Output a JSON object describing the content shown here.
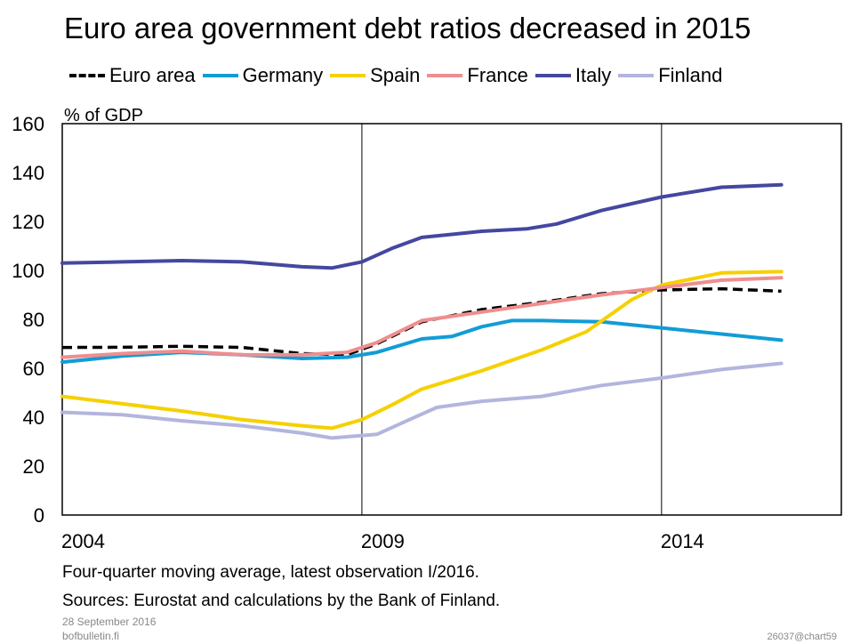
{
  "chart_data": {
    "type": "line",
    "title": "Euro area government debt ratios decreased in 2015",
    "ylabel": "% of GDP",
    "xlabel": "",
    "ylim": [
      0,
      160
    ],
    "yticks": [
      0,
      20,
      40,
      60,
      80,
      100,
      120,
      140,
      160
    ],
    "xlim": [
      2004,
      2017
    ],
    "xticks": [
      2004,
      2009,
      2014
    ],
    "xtick_labels": [
      "2004",
      "2009",
      "2014"
    ],
    "grid": "vertical lines at 2009 and 2014",
    "legend_position": "top",
    "series": [
      {
        "name": "Euro area",
        "color": "#000000",
        "style": "dashed",
        "points": [
          [
            2004.0,
            68.5
          ],
          [
            2005.0,
            68.6
          ],
          [
            2006.0,
            69.0
          ],
          [
            2007.0,
            68.5
          ],
          [
            2008.0,
            66.0
          ],
          [
            2008.75,
            65.5
          ],
          [
            2009.25,
            70.0
          ],
          [
            2010.0,
            79.0
          ],
          [
            2011.0,
            84.0
          ],
          [
            2012.0,
            87.0
          ],
          [
            2013.0,
            90.5
          ],
          [
            2014.0,
            92.0
          ],
          [
            2015.0,
            92.5
          ],
          [
            2016.0,
            91.5
          ]
        ]
      },
      {
        "name": "Germany",
        "color": "#129cd6",
        "style": "solid",
        "points": [
          [
            2004.0,
            62.5
          ],
          [
            2005.0,
            65.0
          ],
          [
            2006.0,
            66.5
          ],
          [
            2007.0,
            65.5
          ],
          [
            2008.0,
            64.0
          ],
          [
            2008.75,
            64.5
          ],
          [
            2009.25,
            66.5
          ],
          [
            2010.0,
            72.0
          ],
          [
            2010.5,
            73.0
          ],
          [
            2011.0,
            77.0
          ],
          [
            2011.5,
            79.5
          ],
          [
            2012.0,
            79.5
          ],
          [
            2013.0,
            79.0
          ],
          [
            2014.0,
            76.5
          ],
          [
            2015.0,
            74.0
          ],
          [
            2016.0,
            71.5
          ]
        ]
      },
      {
        "name": "Spain",
        "color": "#f6d000",
        "style": "solid",
        "points": [
          [
            2004.0,
            48.5
          ],
          [
            2005.0,
            45.5
          ],
          [
            2006.0,
            42.5
          ],
          [
            2007.0,
            39.0
          ],
          [
            2008.0,
            36.5
          ],
          [
            2008.5,
            35.5
          ],
          [
            2009.0,
            39.0
          ],
          [
            2009.5,
            45.0
          ],
          [
            2010.0,
            51.5
          ],
          [
            2011.0,
            59.0
          ],
          [
            2012.0,
            67.5
          ],
          [
            2012.75,
            75.0
          ],
          [
            2013.5,
            88.0
          ],
          [
            2014.0,
            94.0
          ],
          [
            2015.0,
            99.0
          ],
          [
            2016.0,
            99.5
          ]
        ]
      },
      {
        "name": "France",
        "color": "#ef8e8e",
        "style": "solid",
        "points": [
          [
            2004.0,
            64.5
          ],
          [
            2005.0,
            66.0
          ],
          [
            2006.0,
            67.0
          ],
          [
            2007.0,
            65.5
          ],
          [
            2008.0,
            65.5
          ],
          [
            2008.75,
            66.5
          ],
          [
            2009.25,
            70.5
          ],
          [
            2010.0,
            79.5
          ],
          [
            2011.0,
            83.0
          ],
          [
            2012.0,
            86.5
          ],
          [
            2013.0,
            90.0
          ],
          [
            2014.0,
            93.0
          ],
          [
            2015.0,
            96.0
          ],
          [
            2016.0,
            97.0
          ]
        ]
      },
      {
        "name": "Italy",
        "color": "#45479f",
        "style": "solid",
        "points": [
          [
            2004.0,
            103.0
          ],
          [
            2005.0,
            103.5
          ],
          [
            2006.0,
            104.0
          ],
          [
            2007.0,
            103.5
          ],
          [
            2008.0,
            101.5
          ],
          [
            2008.5,
            101.0
          ],
          [
            2009.0,
            103.5
          ],
          [
            2009.5,
            109.0
          ],
          [
            2010.0,
            113.5
          ],
          [
            2011.0,
            116.0
          ],
          [
            2011.75,
            117.0
          ],
          [
            2012.25,
            119.0
          ],
          [
            2013.0,
            124.5
          ],
          [
            2014.0,
            130.0
          ],
          [
            2015.0,
            134.0
          ],
          [
            2016.0,
            135.0
          ]
        ]
      },
      {
        "name": "Finland",
        "color": "#b3b5dd",
        "style": "solid",
        "points": [
          [
            2004.0,
            42.0
          ],
          [
            2005.0,
            41.0
          ],
          [
            2006.0,
            38.5
          ],
          [
            2007.0,
            36.5
          ],
          [
            2008.0,
            33.5
          ],
          [
            2008.5,
            31.5
          ],
          [
            2009.25,
            33.0
          ],
          [
            2009.75,
            38.5
          ],
          [
            2010.25,
            44.0
          ],
          [
            2011.0,
            46.5
          ],
          [
            2012.0,
            48.5
          ],
          [
            2013.0,
            53.0
          ],
          [
            2014.0,
            56.0
          ],
          [
            2015.0,
            59.5
          ],
          [
            2016.0,
            62.0
          ]
        ]
      }
    ]
  },
  "footnotes": {
    "line1": "Four-quarter moving average, latest observation I/2016.",
    "line2": "Sources: Eurostat and calculations by the Bank of Finland.",
    "date": "28 September 2016",
    "site": "bofbulletin.fi",
    "code": "26037@chart59"
  }
}
